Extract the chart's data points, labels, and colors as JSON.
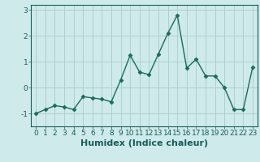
{
  "x": [
    0,
    1,
    2,
    3,
    4,
    5,
    6,
    7,
    8,
    9,
    10,
    11,
    12,
    13,
    14,
    15,
    16,
    17,
    18,
    19,
    20,
    21,
    22,
    23
  ],
  "y": [
    -1.0,
    -0.85,
    -0.7,
    -0.75,
    -0.85,
    -0.35,
    -0.4,
    -0.45,
    -0.55,
    0.3,
    1.25,
    0.6,
    0.5,
    1.3,
    2.1,
    2.8,
    0.75,
    1.1,
    0.45,
    0.45,
    0.0,
    -0.85,
    -0.85,
    0.8
  ],
  "line_color": "#1a6b5a",
  "marker": "D",
  "marker_size": 2.5,
  "linewidth": 1.0,
  "xlabel": "Humidex (Indice chaleur)",
  "xlim": [
    -0.5,
    23.5
  ],
  "ylim": [
    -1.5,
    3.2
  ],
  "yticks": [
    -1,
    0,
    1,
    2,
    3
  ],
  "xtick_labels": [
    "0",
    "1",
    "2",
    "3",
    "4",
    "5",
    "6",
    "7",
    "8",
    "9",
    "10",
    "11",
    "12",
    "13",
    "14",
    "15",
    "16",
    "17",
    "18",
    "19",
    "20",
    "21",
    "22",
    "23"
  ],
  "bg_color": "#ceeaea",
  "grid_color": "#aed0d0",
  "tick_color": "#1a5c5c",
  "xlabel_fontsize": 8,
  "tick_fontsize": 6.5
}
